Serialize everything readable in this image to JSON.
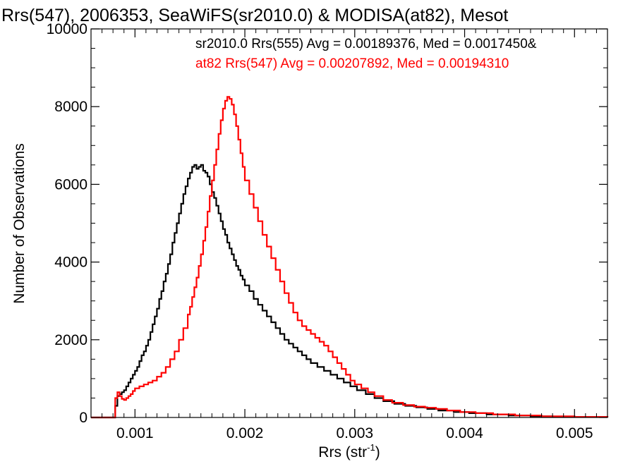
{
  "chart_data": {
    "type": "line",
    "title": "Rrs(547), 2006353, SeaWiFS(sr2010.0) & MODISA(at82), Mesot",
    "xlabel_main": "Rrs (str",
    "xlabel_sup": "-1",
    "xlabel_close": ")",
    "ylabel": "Number of Observations",
    "xlim": [
      0.0006,
      0.0053
    ],
    "ylim": [
      0,
      10000
    ],
    "x_ticks": [
      0.001,
      0.002,
      0.003,
      0.004,
      0.005
    ],
    "x_tick_labels": [
      "0.001",
      "0.002",
      "0.003",
      "0.004",
      "0.005"
    ],
    "y_ticks": [
      0,
      2000,
      4000,
      6000,
      8000,
      10000
    ],
    "y_tick_labels": [
      "0",
      "2000",
      "4000",
      "6000",
      "8000",
      "10000"
    ],
    "grid": false,
    "annotations": [
      {
        "text": "sr2010.0 Rrs(555) Avg = 0.00189376, Med = 0.0017450&",
        "color": "#000000"
      },
      {
        "text": "at82 Rrs(547) Avg = 0.00207892, Med = 0.00194310",
        "color": "#ff0000"
      }
    ],
    "series": [
      {
        "color": "#000000",
        "points": [
          [
            0.0006,
            0
          ],
          [
            0.0008,
            0
          ],
          [
            0.00082,
            300
          ],
          [
            0.00084,
            550
          ],
          [
            0.00086,
            600
          ],
          [
            0.00088,
            650
          ],
          [
            0.0009,
            700
          ],
          [
            0.00092,
            800
          ],
          [
            0.00094,
            900
          ],
          [
            0.00096,
            1000
          ],
          [
            0.00098,
            1100
          ],
          [
            0.001,
            1200
          ],
          [
            0.00102,
            1300
          ],
          [
            0.00104,
            1450
          ],
          [
            0.00106,
            1600
          ],
          [
            0.00108,
            1700
          ],
          [
            0.0011,
            1850
          ],
          [
            0.00112,
            2000
          ],
          [
            0.00114,
            2200
          ],
          [
            0.00116,
            2400
          ],
          [
            0.00118,
            2600
          ],
          [
            0.0012,
            2800
          ],
          [
            0.00122,
            3050
          ],
          [
            0.00124,
            3250
          ],
          [
            0.00126,
            3500
          ],
          [
            0.00128,
            3700
          ],
          [
            0.0013,
            3950
          ],
          [
            0.00132,
            4200
          ],
          [
            0.00134,
            4500
          ],
          [
            0.00136,
            4750
          ],
          [
            0.00138,
            5000
          ],
          [
            0.0014,
            5250
          ],
          [
            0.00142,
            5500
          ],
          [
            0.00144,
            5750
          ],
          [
            0.00146,
            5950
          ],
          [
            0.00148,
            6150
          ],
          [
            0.0015,
            6300
          ],
          [
            0.00152,
            6450
          ],
          [
            0.00154,
            6500
          ],
          [
            0.00156,
            6400
          ],
          [
            0.00158,
            6450
          ],
          [
            0.0016,
            6500
          ],
          [
            0.00162,
            6350
          ],
          [
            0.00164,
            6300
          ],
          [
            0.00166,
            6200
          ],
          [
            0.00168,
            6000
          ],
          [
            0.0017,
            5800
          ],
          [
            0.00172,
            5650
          ],
          [
            0.00174,
            5450
          ],
          [
            0.00176,
            5250
          ],
          [
            0.00178,
            5050
          ],
          [
            0.0018,
            4850
          ],
          [
            0.00182,
            4700
          ],
          [
            0.00184,
            4500
          ],
          [
            0.00186,
            4350
          ],
          [
            0.00188,
            4200
          ],
          [
            0.0019,
            4050
          ],
          [
            0.00192,
            3900
          ],
          [
            0.00194,
            3800
          ],
          [
            0.00196,
            3650
          ],
          [
            0.00198,
            3550
          ],
          [
            0.002,
            3400
          ],
          [
            0.00204,
            3250
          ],
          [
            0.00208,
            3050
          ],
          [
            0.00212,
            2900
          ],
          [
            0.00216,
            2750
          ],
          [
            0.0022,
            2600
          ],
          [
            0.00224,
            2450
          ],
          [
            0.00228,
            2300
          ],
          [
            0.00232,
            2150
          ],
          [
            0.00236,
            2000
          ],
          [
            0.0024,
            1900
          ],
          [
            0.00244,
            1800
          ],
          [
            0.00248,
            1700
          ],
          [
            0.00252,
            1600
          ],
          [
            0.00256,
            1500
          ],
          [
            0.0026,
            1400
          ],
          [
            0.00266,
            1300
          ],
          [
            0.00272,
            1200
          ],
          [
            0.00278,
            1100
          ],
          [
            0.00284,
            1000
          ],
          [
            0.0029,
            900
          ],
          [
            0.00296,
            800
          ],
          [
            0.00302,
            700
          ],
          [
            0.0031,
            600
          ],
          [
            0.00318,
            500
          ],
          [
            0.00326,
            420
          ],
          [
            0.00336,
            350
          ],
          [
            0.00346,
            300
          ],
          [
            0.00356,
            260
          ],
          [
            0.00366,
            220
          ],
          [
            0.00376,
            180
          ],
          [
            0.0039,
            140
          ],
          [
            0.00404,
            110
          ],
          [
            0.0042,
            80
          ],
          [
            0.0044,
            50
          ],
          [
            0.0046,
            30
          ],
          [
            0.0048,
            20
          ],
          [
            0.005,
            10
          ],
          [
            0.0053,
            0
          ]
        ]
      },
      {
        "color": "#ff0000",
        "points": [
          [
            0.0006,
            0
          ],
          [
            0.0008,
            0
          ],
          [
            0.00082,
            500
          ],
          [
            0.00084,
            650
          ],
          [
            0.00086,
            550
          ],
          [
            0.00088,
            480
          ],
          [
            0.0009,
            450
          ],
          [
            0.00092,
            500
          ],
          [
            0.00094,
            550
          ],
          [
            0.00096,
            600
          ],
          [
            0.00098,
            680
          ],
          [
            0.001,
            750
          ],
          [
            0.00104,
            800
          ],
          [
            0.00108,
            850
          ],
          [
            0.00112,
            900
          ],
          [
            0.00116,
            950
          ],
          [
            0.0012,
            1050
          ],
          [
            0.00124,
            1150
          ],
          [
            0.00128,
            1300
          ],
          [
            0.00132,
            1500
          ],
          [
            0.00136,
            1700
          ],
          [
            0.0014,
            2000
          ],
          [
            0.00144,
            2300
          ],
          [
            0.00148,
            2650
          ],
          [
            0.0015,
            2850
          ],
          [
            0.00152,
            3100
          ],
          [
            0.00154,
            3350
          ],
          [
            0.00156,
            3600
          ],
          [
            0.00158,
            3900
          ],
          [
            0.0016,
            4200
          ],
          [
            0.00162,
            4550
          ],
          [
            0.00164,
            4900
          ],
          [
            0.00166,
            5300
          ],
          [
            0.00168,
            5700
          ],
          [
            0.0017,
            6100
          ],
          [
            0.00172,
            6500
          ],
          [
            0.00174,
            6900
          ],
          [
            0.00176,
            7300
          ],
          [
            0.00178,
            7650
          ],
          [
            0.0018,
            7950
          ],
          [
            0.00182,
            8150
          ],
          [
            0.00184,
            8250
          ],
          [
            0.00186,
            8200
          ],
          [
            0.00188,
            8050
          ],
          [
            0.0019,
            7800
          ],
          [
            0.00192,
            7500
          ],
          [
            0.00194,
            7150
          ],
          [
            0.00196,
            6800
          ],
          [
            0.00198,
            6450
          ],
          [
            0.002,
            6100
          ],
          [
            0.00204,
            5750
          ],
          [
            0.00208,
            5400
          ],
          [
            0.00212,
            5050
          ],
          [
            0.00216,
            4700
          ],
          [
            0.0022,
            4400
          ],
          [
            0.00224,
            4100
          ],
          [
            0.00228,
            3800
          ],
          [
            0.00232,
            3500
          ],
          [
            0.00236,
            3200
          ],
          [
            0.0024,
            2950
          ],
          [
            0.00244,
            2700
          ],
          [
            0.00248,
            2500
          ],
          [
            0.00252,
            2350
          ],
          [
            0.00256,
            2250
          ],
          [
            0.0026,
            2150
          ],
          [
            0.00264,
            2050
          ],
          [
            0.00268,
            1950
          ],
          [
            0.00272,
            1850
          ],
          [
            0.00276,
            1700
          ],
          [
            0.0028,
            1550
          ],
          [
            0.00284,
            1400
          ],
          [
            0.00288,
            1250
          ],
          [
            0.00292,
            1100
          ],
          [
            0.00296,
            950
          ],
          [
            0.003,
            850
          ],
          [
            0.00306,
            750
          ],
          [
            0.00312,
            650
          ],
          [
            0.00318,
            550
          ],
          [
            0.00326,
            450
          ],
          [
            0.00334,
            380
          ],
          [
            0.00344,
            320
          ],
          [
            0.00354,
            280
          ],
          [
            0.00364,
            250
          ],
          [
            0.00374,
            220
          ],
          [
            0.00384,
            180
          ],
          [
            0.00396,
            140
          ],
          [
            0.0041,
            110
          ],
          [
            0.00426,
            80
          ],
          [
            0.00446,
            50
          ],
          [
            0.0047,
            30
          ],
          [
            0.005,
            15
          ],
          [
            0.0053,
            0
          ]
        ]
      }
    ]
  }
}
